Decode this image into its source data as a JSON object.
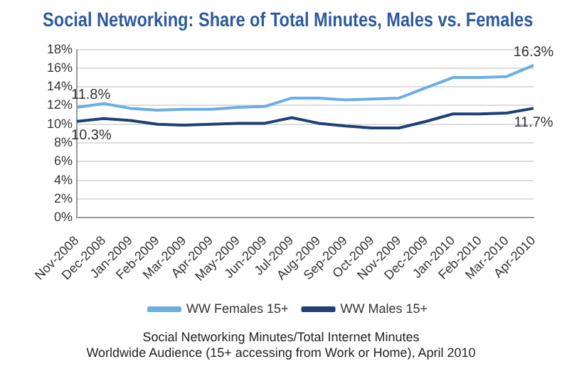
{
  "chart_data": {
    "type": "line",
    "title": "Social Networking: Share of Total Minutes, Males vs. Females",
    "categories": [
      "Nov-2008",
      "Dec-2008",
      "Jan-2009",
      "Feb-2009",
      "Mar-2009",
      "Apr-2009",
      "May-2009",
      "Jun-2009",
      "Jul-2009",
      "Aug-2009",
      "Sep-2009",
      "Oct-2009",
      "Nov-2009",
      "Dec-2009",
      "Jan-2010",
      "Feb-2010",
      "Mar-2010",
      "Apr-2010"
    ],
    "series": [
      {
        "name": "WW Females 15+",
        "color": "#6aaee6",
        "values": [
          11.8,
          12.2,
          11.7,
          11.5,
          11.6,
          11.6,
          11.8,
          11.9,
          12.8,
          12.8,
          12.6,
          12.7,
          12.8,
          13.9,
          15.0,
          15.0,
          15.1,
          16.3
        ],
        "value_labels": [
          "11.8%",
          null,
          null,
          null,
          null,
          null,
          null,
          null,
          null,
          null,
          null,
          null,
          null,
          null,
          null,
          null,
          null,
          "16.3%"
        ]
      },
      {
        "name": "WW Males 15+",
        "color": "#1f3f78",
        "values": [
          10.3,
          10.6,
          10.4,
          10.0,
          9.9,
          10.0,
          10.1,
          10.1,
          10.7,
          10.1,
          9.8,
          9.6,
          9.6,
          10.3,
          11.1,
          11.1,
          11.2,
          11.7
        ],
        "value_labels": [
          "10.3%",
          null,
          null,
          null,
          null,
          null,
          null,
          null,
          null,
          null,
          null,
          null,
          null,
          null,
          null,
          null,
          null,
          "11.7%"
        ]
      }
    ],
    "ylim": [
      0,
      18
    ],
    "yticks": [
      {
        "value": 0,
        "label": "0%"
      },
      {
        "value": 2,
        "label": "2%"
      },
      {
        "value": 4,
        "label": "4%"
      },
      {
        "value": 6,
        "label": "6%"
      },
      {
        "value": 8,
        "label": "8%"
      },
      {
        "value": 10,
        "label": "10%"
      },
      {
        "value": 12,
        "label": "12%"
      },
      {
        "value": 14,
        "label": "14%"
      },
      {
        "value": 16,
        "label": "16%"
      },
      {
        "value": 18,
        "label": "18%"
      }
    ],
    "grid": "y",
    "legend": "bottom",
    "marker": "none",
    "line_style": "solid",
    "annotations": [
      "Social Networking Minutes/Total Internet Minutes",
      "Worldwide Audience (15+ accessing from Work or Home), April 2010"
    ]
  }
}
